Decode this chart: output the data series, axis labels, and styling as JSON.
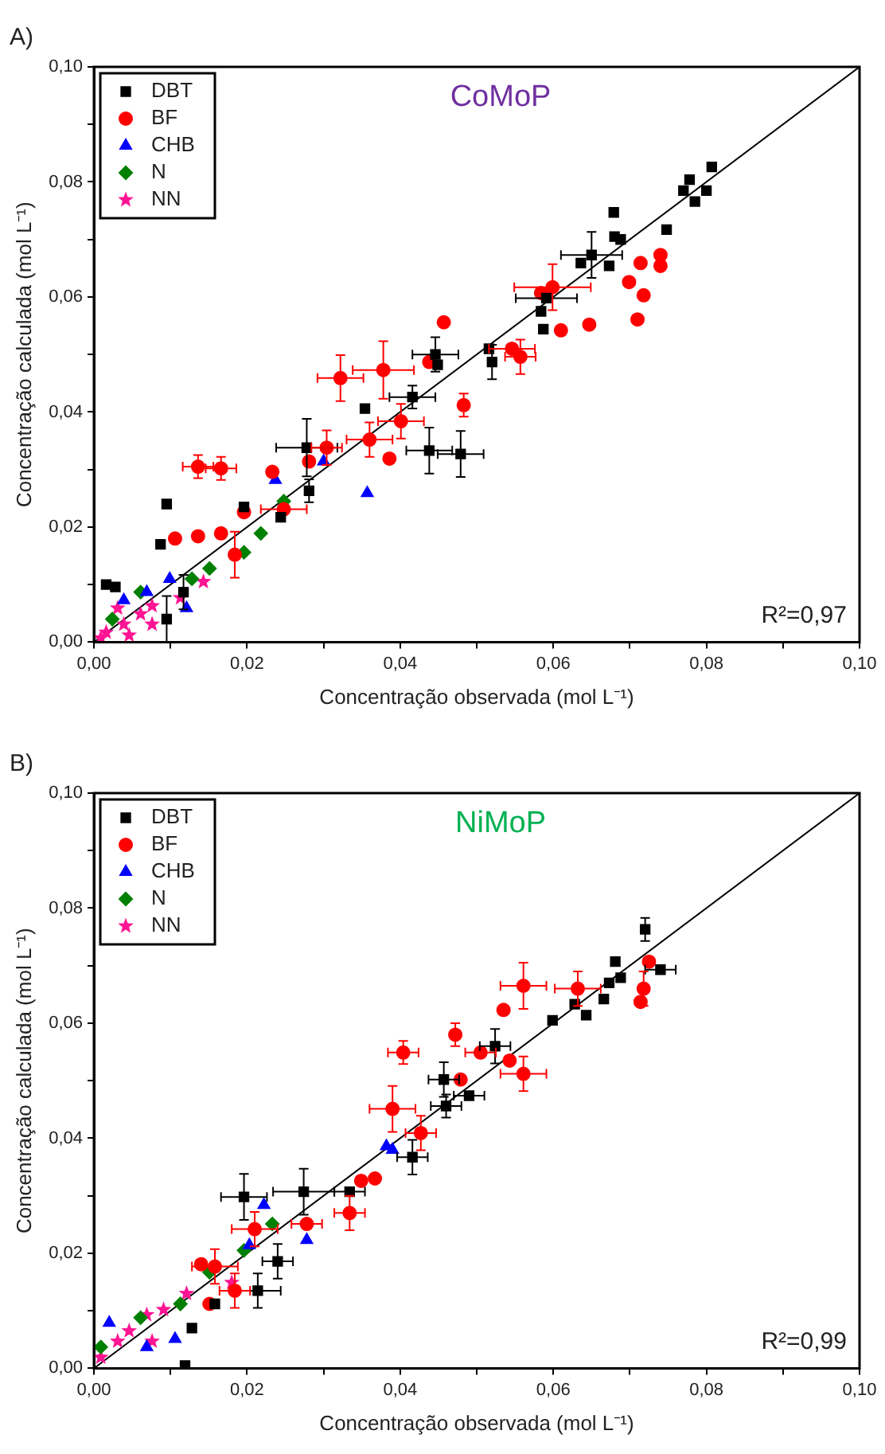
{
  "chart_data": [
    {
      "type": "scatter",
      "title": "CoMoP",
      "xlabel": "Concentração observada (mol L⁻¹)",
      "ylabel": "Concentração calculada (mol L⁻¹)",
      "annotations": [
        "A)",
        "R²=0,97"
      ],
      "xlim": [
        0,
        0.1
      ],
      "ylim": [
        0,
        0.1
      ],
      "xticks": [
        {
          "value": 0,
          "label": "0,00"
        },
        {
          "value": 0.01,
          "label": null
        },
        {
          "value": 0.02,
          "label": "0,02"
        },
        {
          "value": 0.03,
          "label": null
        },
        {
          "value": 0.04,
          "label": "0,04"
        },
        {
          "value": 0.05,
          "label": null
        },
        {
          "value": 0.06,
          "label": "0,06"
        },
        {
          "value": 0.07,
          "label": null
        },
        {
          "value": 0.08,
          "label": "0,08"
        },
        {
          "value": 0.09,
          "label": null
        },
        {
          "value": 0.1,
          "label": "0,10"
        }
      ],
      "yticks": [
        {
          "value": 0,
          "label": "0,00"
        },
        {
          "value": 0.01,
          "label": null
        },
        {
          "value": 0.02,
          "label": "0,02"
        },
        {
          "value": 0.03,
          "label": null
        },
        {
          "value": 0.04,
          "label": "0,04"
        },
        {
          "value": 0.05,
          "label": null
        },
        {
          "value": 0.06,
          "label": "0,06"
        },
        {
          "value": 0.07,
          "label": null
        },
        {
          "value": 0.08,
          "label": "0,08"
        },
        {
          "value": 0.09,
          "label": null
        },
        {
          "value": 0.1,
          "label": "0,10"
        }
      ],
      "grid": false,
      "legend": "top left",
      "series": [
        {
          "name": "DBT",
          "color": "#000000",
          "marker": "square",
          "x": [
            0.0807,
            0.0778,
            0.077,
            0.08,
            0.0785,
            0.0748,
            0.0679,
            0.068,
            0.0688,
            0.0673,
            0.065,
            0.0636,
            0.0591,
            0.0584,
            0.0587,
            0.0516,
            0.052,
            0.0446,
            0.0449,
            0.0416,
            0.0354,
            0.0438,
            0.0479,
            0.0278,
            0.0281,
            0.0244,
            0.0196,
            0.0095,
            0.0087,
            0.0016,
            0.0028,
            0.0117,
            0.0095
          ],
          "values": [
            0.0826,
            0.0804,
            0.0785,
            0.0785,
            0.0766,
            0.0717,
            0.0747,
            0.0705,
            0.07,
            0.0654,
            0.0673,
            0.0659,
            0.0598,
            0.0575,
            0.0544,
            0.051,
            0.0487,
            0.05,
            0.0482,
            0.0426,
            0.0406,
            0.0333,
            0.0327,
            0.0338,
            0.0263,
            0.0217,
            0.0235,
            0.024,
            0.017,
            0.01,
            0.0096,
            0.0087,
            0.004
          ],
          "errors": [
            null,
            null,
            null,
            null,
            null,
            null,
            null,
            null,
            null,
            null,
            0.004,
            null,
            null,
            null,
            null,
            null,
            0.003,
            0.003,
            null,
            0.002,
            null,
            0.004,
            0.004,
            0.005,
            0.002,
            null,
            null,
            null,
            null,
            null,
            null,
            0.003,
            0.004
          ],
          "xerrors": [
            null,
            null,
            null,
            null,
            null,
            null,
            null,
            null,
            null,
            null,
            0.004,
            null,
            0.004,
            null,
            null,
            null,
            null,
            0.003,
            null,
            0.003,
            null,
            0.003,
            0.003,
            0.004,
            null,
            null,
            null,
            null,
            null,
            null,
            null,
            null,
            null
          ]
        },
        {
          "name": "BF",
          "color": "#ff0000",
          "marker": "circle",
          "x": [
            0.074,
            0.074,
            0.0714,
            0.0699,
            0.0718,
            0.071,
            0.0647,
            0.061,
            0.0599,
            0.0584,
            0.0546,
            0.0557,
            0.0457,
            0.0438,
            0.0378,
            0.0322,
            0.0483,
            0.0401,
            0.036,
            0.0386,
            0.0304,
            0.0281,
            0.0233,
            0.0166,
            0.0136,
            0.0196,
            0.0166,
            0.0136,
            0.0106,
            0.0184,
            0.0248
          ],
          "values": [
            0.0673,
            0.0654,
            0.0659,
            0.0626,
            0.0603,
            0.0561,
            0.0552,
            0.0542,
            0.0617,
            0.0607,
            0.051,
            0.0496,
            0.0556,
            0.0487,
            0.0473,
            0.0459,
            0.0412,
            0.0384,
            0.0352,
            0.0319,
            0.0338,
            0.0314,
            0.0296,
            0.0302,
            0.0305,
            0.0226,
            0.0189,
            0.0184,
            0.018,
            0.0152,
            0.0231
          ],
          "errors": [
            null,
            null,
            null,
            null,
            null,
            null,
            null,
            null,
            0.004,
            null,
            null,
            0.003,
            null,
            null,
            0.005,
            0.004,
            0.002,
            0.003,
            0.003,
            null,
            0.003,
            null,
            null,
            0.002,
            0.002,
            null,
            null,
            null,
            null,
            0.004,
            null
          ],
          "xerrors": [
            null,
            null,
            null,
            null,
            null,
            null,
            null,
            null,
            0.005,
            null,
            0.003,
            0.002,
            null,
            null,
            0.004,
            0.003,
            null,
            0.003,
            0.003,
            null,
            0.002,
            null,
            null,
            0.002,
            0.002,
            null,
            null,
            null,
            null,
            null,
            0.003
          ]
        },
        {
          "name": "CHB",
          "color": "#0000ff",
          "marker": "triangle",
          "x": [
            0.0237,
            0.03,
            0.0357,
            0.0121,
            0.0099,
            0.0069,
            0.0039
          ],
          "values": [
            0.0282,
            0.0314,
            0.0259,
            0.0059,
            0.011,
            0.0087,
            0.0073
          ]
        },
        {
          "name": "N",
          "color": "#008000",
          "marker": "diamond",
          "x": [
            0.0248,
            0.0218,
            0.0196,
            0.0151,
            0.0128,
            0.0061,
            0.0024
          ],
          "values": [
            0.0245,
            0.0189,
            0.0156,
            0.0128,
            0.011,
            0.0087,
            0.004
          ]
        },
        {
          "name": "NN",
          "color": "#ff1493",
          "marker": "star",
          "x": [
            0.0143,
            0.0113,
            0.0076,
            0.0061,
            0.0039,
            0.0016,
            0.0009,
            0.0046,
            0.0076,
            0.0031
          ],
          "values": [
            0.0105,
            0.0077,
            0.0063,
            0.0049,
            0.0031,
            0.0017,
            0.0007,
            0.0012,
            0.0031,
            0.0059
          ]
        },
        {
          "type": "line",
          "color": "#000000",
          "marker": "none",
          "x": [
            0,
            0.1
          ],
          "values": [
            0,
            0.1
          ]
        }
      ]
    },
    {
      "type": "scatter",
      "title": "NiMoP",
      "xlabel": "Concentração observada (mol L⁻¹)",
      "ylabel": "Concentração calculada (mol L⁻¹)",
      "annotations": [
        "B)",
        "R²=0,99"
      ],
      "xlim": [
        0,
        0.1
      ],
      "ylim": [
        0,
        0.1
      ],
      "xticks": [
        {
          "value": 0,
          "label": "0,00"
        },
        {
          "value": 0.01,
          "label": null
        },
        {
          "value": 0.02,
          "label": "0,02"
        },
        {
          "value": 0.03,
          "label": null
        },
        {
          "value": 0.04,
          "label": "0,04"
        },
        {
          "value": 0.05,
          "label": null
        },
        {
          "value": 0.06,
          "label": "0,06"
        },
        {
          "value": 0.07,
          "label": null
        },
        {
          "value": 0.08,
          "label": "0,08"
        },
        {
          "value": 0.09,
          "label": null
        },
        {
          "value": 0.1,
          "label": "0,10"
        }
      ],
      "yticks": [
        {
          "value": 0,
          "label": "0,00"
        },
        {
          "value": 0.01,
          "label": null
        },
        {
          "value": 0.02,
          "label": "0,02"
        },
        {
          "value": 0.03,
          "label": null
        },
        {
          "value": 0.04,
          "label": "0,04"
        },
        {
          "value": 0.05,
          "label": null
        },
        {
          "value": 0.06,
          "label": "0,06"
        },
        {
          "value": 0.07,
          "label": null
        },
        {
          "value": 0.08,
          "label": "0,08"
        },
        {
          "value": 0.09,
          "label": null
        },
        {
          "value": 0.1,
          "label": "0,10"
        }
      ],
      "grid": false,
      "legend": "top left",
      "series": [
        {
          "name": "DBT",
          "color": "#000000",
          "marker": "square",
          "x": [
            0.072,
            0.074,
            0.0681,
            0.0673,
            0.0688,
            0.0666,
            0.0643,
            0.0628,
            0.0599,
            0.0524,
            0.0457,
            0.046,
            0.049,
            0.0416,
            0.0334,
            0.0274,
            0.0196,
            0.024,
            0.0214,
            0.0158,
            0.0128,
            0.0119
          ],
          "values": [
            0.0763,
            0.0693,
            0.0707,
            0.067,
            0.0679,
            0.0642,
            0.0614,
            0.0633,
            0.0605,
            0.056,
            0.0502,
            0.0456,
            0.0474,
            0.0367,
            0.0307,
            0.0307,
            0.0298,
            0.0186,
            0.0135,
            0.0112,
            0.007,
            0.0005
          ],
          "errors": [
            0.002,
            null,
            null,
            null,
            null,
            null,
            null,
            null,
            null,
            0.003,
            0.003,
            0.002,
            null,
            0.003,
            null,
            0.004,
            0.004,
            0.003,
            0.003,
            null,
            null,
            null
          ],
          "xerrors": [
            null,
            0.002,
            null,
            null,
            null,
            null,
            null,
            null,
            null,
            0.002,
            0.002,
            0.002,
            0.002,
            0.002,
            0.002,
            0.004,
            0.003,
            0.002,
            0.003,
            null,
            null,
            null
          ]
        },
        {
          "name": "BF",
          "color": "#ff0000",
          "marker": "circle",
          "x": [
            0.0718,
            0.0714,
            0.0725,
            0.0632,
            0.0561,
            0.0535,
            0.0472,
            0.0404,
            0.0561,
            0.0543,
            0.0505,
            0.0479,
            0.039,
            0.0427,
            0.0367,
            0.0349,
            0.0334,
            0.0278,
            0.021,
            0.0158,
            0.014,
            0.0184,
            0.0151
          ],
          "values": [
            0.066,
            0.0637,
            0.0707,
            0.066,
            0.0665,
            0.0623,
            0.058,
            0.0549,
            0.0512,
            0.0535,
            0.0549,
            0.0502,
            0.0451,
            0.0409,
            0.033,
            0.0326,
            0.027,
            0.0251,
            0.0242,
            0.0177,
            0.0181,
            0.0135,
            0.0112
          ],
          "errors": [
            0.003,
            null,
            null,
            0.003,
            0.004,
            null,
            0.002,
            0.002,
            0.003,
            null,
            null,
            null,
            0.004,
            0.003,
            null,
            null,
            0.003,
            null,
            0.003,
            0.003,
            null,
            0.003,
            null
          ],
          "xerrors": [
            null,
            null,
            null,
            0.003,
            0.003,
            null,
            null,
            0.002,
            0.003,
            null,
            0.002,
            null,
            0.003,
            0.002,
            null,
            null,
            0.002,
            0.002,
            0.003,
            0.003,
            null,
            0.002,
            null
          ]
        },
        {
          "name": "CHB",
          "color": "#0000ff",
          "marker": "triangle",
          "x": [
            0.0382,
            0.039,
            0.0222,
            0.0278,
            0.0203,
            0.002,
            0.0106,
            0.0069
          ],
          "values": [
            0.0386,
            0.038,
            0.0284,
            0.0223,
            0.0214,
            0.0079,
            0.0051,
            0.0037
          ]
        },
        {
          "name": "N",
          "color": "#008000",
          "marker": "diamond",
          "x": [
            0.0233,
            0.0196,
            0.0151,
            0.0113,
            0.0061,
            0.0009
          ],
          "values": [
            0.0251,
            0.0205,
            0.0167,
            0.0112,
            0.0088,
            0.0037
          ]
        },
        {
          "name": "NN",
          "color": "#ff1493",
          "marker": "star",
          "x": [
            0.018,
            0.0121,
            0.0091,
            0.0069,
            0.0046,
            0.0031,
            0.0009,
            0.0076
          ],
          "values": [
            0.0149,
            0.013,
            0.0102,
            0.0093,
            0.0065,
            0.0047,
            0.0019,
            0.0047
          ]
        },
        {
          "type": "line",
          "color": "#000000",
          "marker": "none",
          "x": [
            0,
            0.1
          ],
          "values": [
            0,
            0.1
          ]
        }
      ]
    }
  ]
}
